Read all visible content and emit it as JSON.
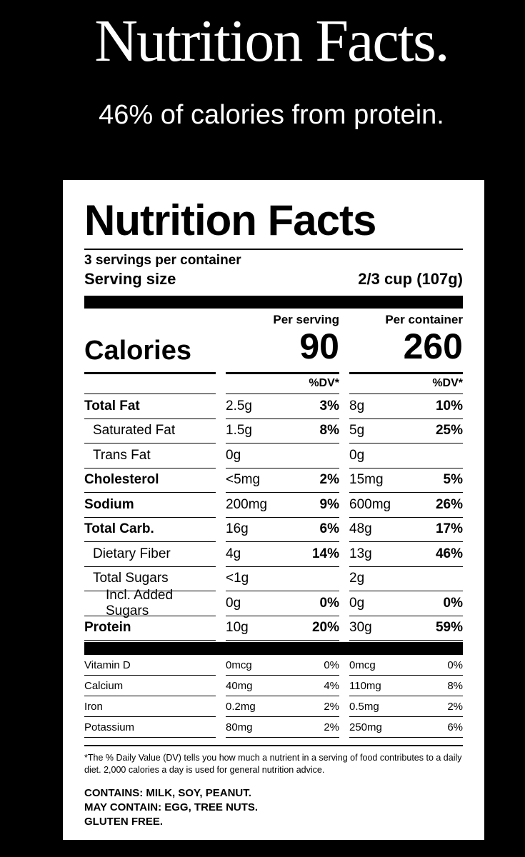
{
  "hero": {
    "title": "Nutrition Facts.",
    "subtitle": "46% of calories from protein."
  },
  "label": {
    "title": "Nutrition Facts",
    "servings_per_container": "3 servings per container",
    "serving_size_label": "Serving size",
    "serving_size_value": "2/3 cup (107g)",
    "per_serving_header": "Per serving",
    "per_container_header": "Per container",
    "calories_label": "Calories",
    "calories_serving": "90",
    "calories_container": "260",
    "dv_header": "%DV*",
    "nutrients": [
      {
        "name": "Total Fat",
        "serving": "2.5g",
        "serving_dv": "3%",
        "container": "8g",
        "container_dv": "10%"
      },
      {
        "name": "Saturated Fat",
        "serving": "1.5g",
        "serving_dv": "8%",
        "container": "5g",
        "container_dv": "25%"
      },
      {
        "name": "Trans Fat",
        "serving": "0g",
        "serving_dv": "",
        "container": "0g",
        "container_dv": ""
      },
      {
        "name": "Cholesterol",
        "serving": "<5mg",
        "serving_dv": "2%",
        "container": "15mg",
        "container_dv": "5%"
      },
      {
        "name": "Sodium",
        "serving": "200mg",
        "serving_dv": "9%",
        "container": "600mg",
        "container_dv": "26%"
      },
      {
        "name": "Total Carb.",
        "serving": "16g",
        "serving_dv": "6%",
        "container": "48g",
        "container_dv": "17%"
      },
      {
        "name": "Dietary Fiber",
        "serving": "4g",
        "serving_dv": "14%",
        "container": "13g",
        "container_dv": "46%"
      },
      {
        "name": "Total Sugars",
        "serving": "<1g",
        "serving_dv": "",
        "container": "2g",
        "container_dv": ""
      },
      {
        "name": "Incl. Added Sugars",
        "serving": "0g",
        "serving_dv": "0%",
        "container": "0g",
        "container_dv": "0%"
      },
      {
        "name": "Protein",
        "serving": "10g",
        "serving_dv": "20%",
        "container": "30g",
        "container_dv": "59%"
      }
    ],
    "vitamins": [
      {
        "name": "Vitamin D",
        "serving": "0mcg",
        "serving_dv": "0%",
        "container": "0mcg",
        "container_dv": "0%"
      },
      {
        "name": "Calcium",
        "serving": "40mg",
        "serving_dv": "4%",
        "container": "110mg",
        "container_dv": "8%"
      },
      {
        "name": "Iron",
        "serving": "0.2mg",
        "serving_dv": "2%",
        "container": "0.5mg",
        "container_dv": "2%"
      },
      {
        "name": "Potassium",
        "serving": "80mg",
        "serving_dv": "2%",
        "container": "250mg",
        "container_dv": "6%"
      }
    ],
    "footnote": "*The % Daily Value (DV) tells you how much a nutrient in a serving of food contributes to a daily diet. 2,000 calories a day is used for general nutrition advice.",
    "contains": "CONTAINS: MILK, SOY, PEANUT.",
    "may_contain": "MAY CONTAIN: EGG, TREE NUTS.",
    "gluten": "GLUTEN FREE."
  }
}
